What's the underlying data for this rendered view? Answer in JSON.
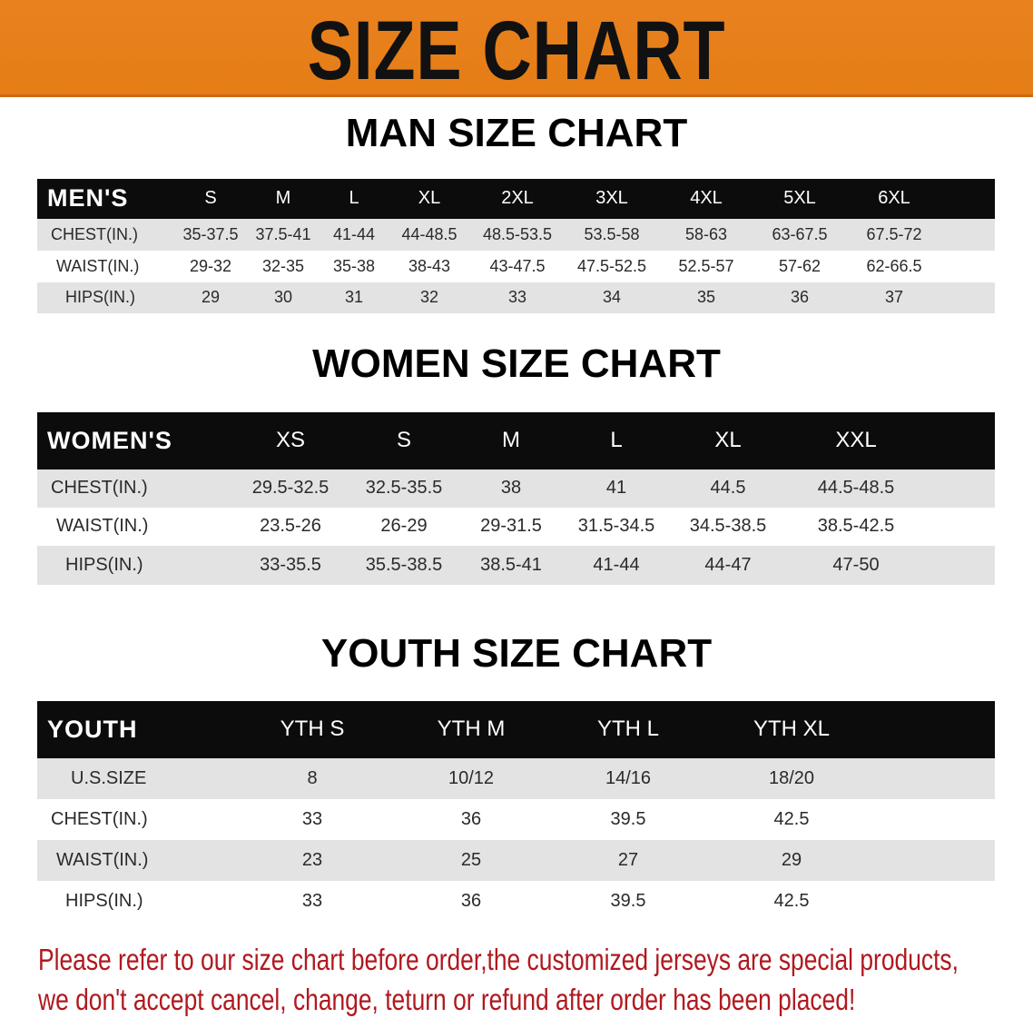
{
  "banner": {
    "title": "SIZE CHART",
    "color": "#e8821f"
  },
  "men": {
    "title": "MAN SIZE CHART",
    "header_label": "MEN'S",
    "sizes": [
      "S",
      "M",
      "L",
      "XL",
      "2XL",
      "3XL",
      "4XL",
      "5XL",
      "6XL"
    ],
    "rows": [
      {
        "label": "CHEST(IN.)",
        "values": [
          "35-37.5",
          "37.5-41",
          "41-44",
          "44-48.5",
          "48.5-53.5",
          "53.5-58",
          "58-63",
          "63-67.5",
          "67.5-72"
        ]
      },
      {
        "label": "WAIST(IN.)",
        "values": [
          "29-32",
          "32-35",
          "35-38",
          "38-43",
          "43-47.5",
          "47.5-52.5",
          "52.5-57",
          "57-62",
          "62-66.5"
        ]
      },
      {
        "label": "HIPS(IN.)",
        "values": [
          "29",
          "30",
          "31",
          "32",
          "33",
          "34",
          "35",
          "36",
          "37"
        ]
      }
    ]
  },
  "women": {
    "title": "WOMEN SIZE CHART",
    "header_label": "WOMEN'S",
    "sizes": [
      "XS",
      "S",
      "M",
      "L",
      "XL",
      "XXL"
    ],
    "rows": [
      {
        "label": "CHEST(IN.)",
        "values": [
          "29.5-32.5",
          "32.5-35.5",
          "38",
          "41",
          "44.5",
          "44.5-48.5"
        ]
      },
      {
        "label": "WAIST(IN.)",
        "values": [
          "23.5-26",
          "26-29",
          "29-31.5",
          "31.5-34.5",
          "34.5-38.5",
          "38.5-42.5"
        ]
      },
      {
        "label": "HIPS(IN.)",
        "values": [
          "33-35.5",
          "35.5-38.5",
          "38.5-41",
          "41-44",
          "44-47",
          "47-50"
        ]
      }
    ]
  },
  "youth": {
    "title": "YOUTH SIZE CHART",
    "header_label": "YOUTH",
    "sizes": [
      "YTH S",
      "YTH M",
      "YTH L",
      "YTH XL"
    ],
    "rows": [
      {
        "label": "U.S.SIZE",
        "values": [
          "8",
          "10/12",
          "14/16",
          "18/20"
        ]
      },
      {
        "label": "CHEST(IN.)",
        "values": [
          "33",
          "36",
          "39.5",
          "42.5"
        ]
      },
      {
        "label": "WAIST(IN.)",
        "values": [
          "23",
          "25",
          "27",
          "29"
        ]
      },
      {
        "label": "HIPS(IN.)",
        "values": [
          "33",
          "36",
          "39.5",
          "42.5"
        ]
      }
    ]
  },
  "notice": {
    "line1": "Please refer to our size chart before order,the customized jerseys are special products,",
    "line2": "we don't accept cancel, change, teturn or refund after order has been placed!",
    "color": "#b0191f"
  }
}
